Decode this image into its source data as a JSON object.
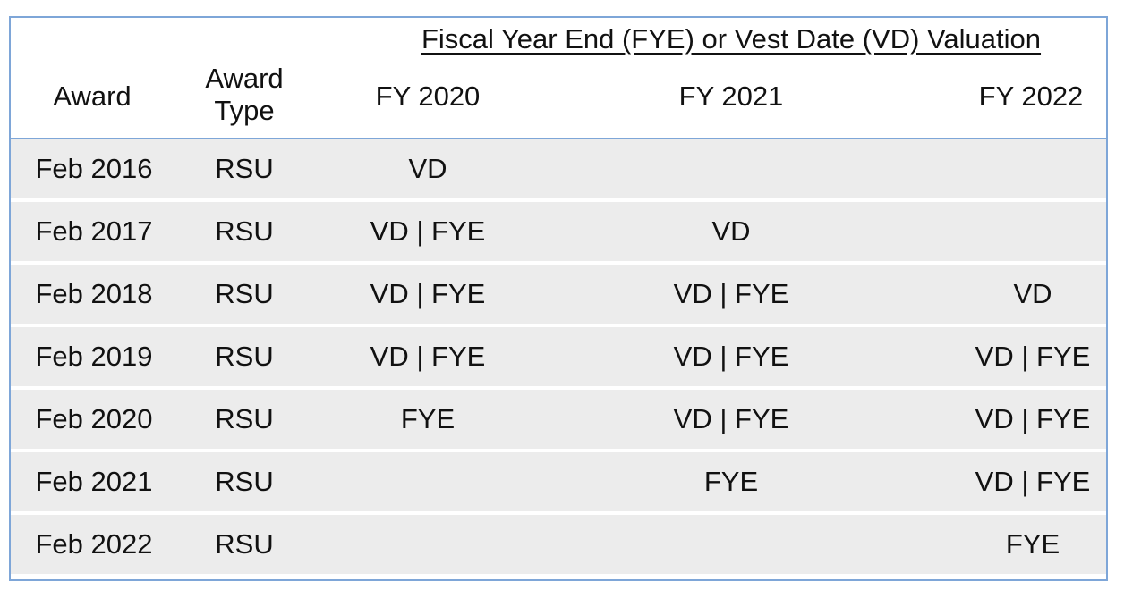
{
  "table": {
    "group_header": "Fiscal Year End (FYE) or Vest Date (VD) Valuation",
    "columns": {
      "award": "Award",
      "award_type_line1": "Award",
      "award_type_line2": "Type",
      "fy0": "FY 2020",
      "fy1": "FY 2021",
      "fy2": "FY 2022"
    },
    "rows": [
      {
        "award": "Feb 2016",
        "type": "RSU",
        "fy0": "VD",
        "fy1": "",
        "fy2": ""
      },
      {
        "award": "Feb 2017",
        "type": "RSU",
        "fy0": "VD | FYE",
        "fy1": "VD",
        "fy2": ""
      },
      {
        "award": "Feb 2018",
        "type": "RSU",
        "fy0": "VD | FYE",
        "fy1": "VD | FYE",
        "fy2": "VD"
      },
      {
        "award": "Feb 2019",
        "type": "RSU",
        "fy0": "VD | FYE",
        "fy1": "VD | FYE",
        "fy2": "VD | FYE"
      },
      {
        "award": "Feb 2020",
        "type": "RSU",
        "fy0": "FYE",
        "fy1": "VD | FYE",
        "fy2": "VD | FYE"
      },
      {
        "award": "Feb 2021",
        "type": "RSU",
        "fy0": "",
        "fy1": "FYE",
        "fy2": "VD | FYE"
      },
      {
        "award": "Feb 2022",
        "type": "RSU",
        "fy0": "",
        "fy1": "",
        "fy2": "FYE"
      }
    ]
  },
  "colors": {
    "border": "#7ea6d8",
    "row_band": "#ececec",
    "text": "#111111"
  }
}
